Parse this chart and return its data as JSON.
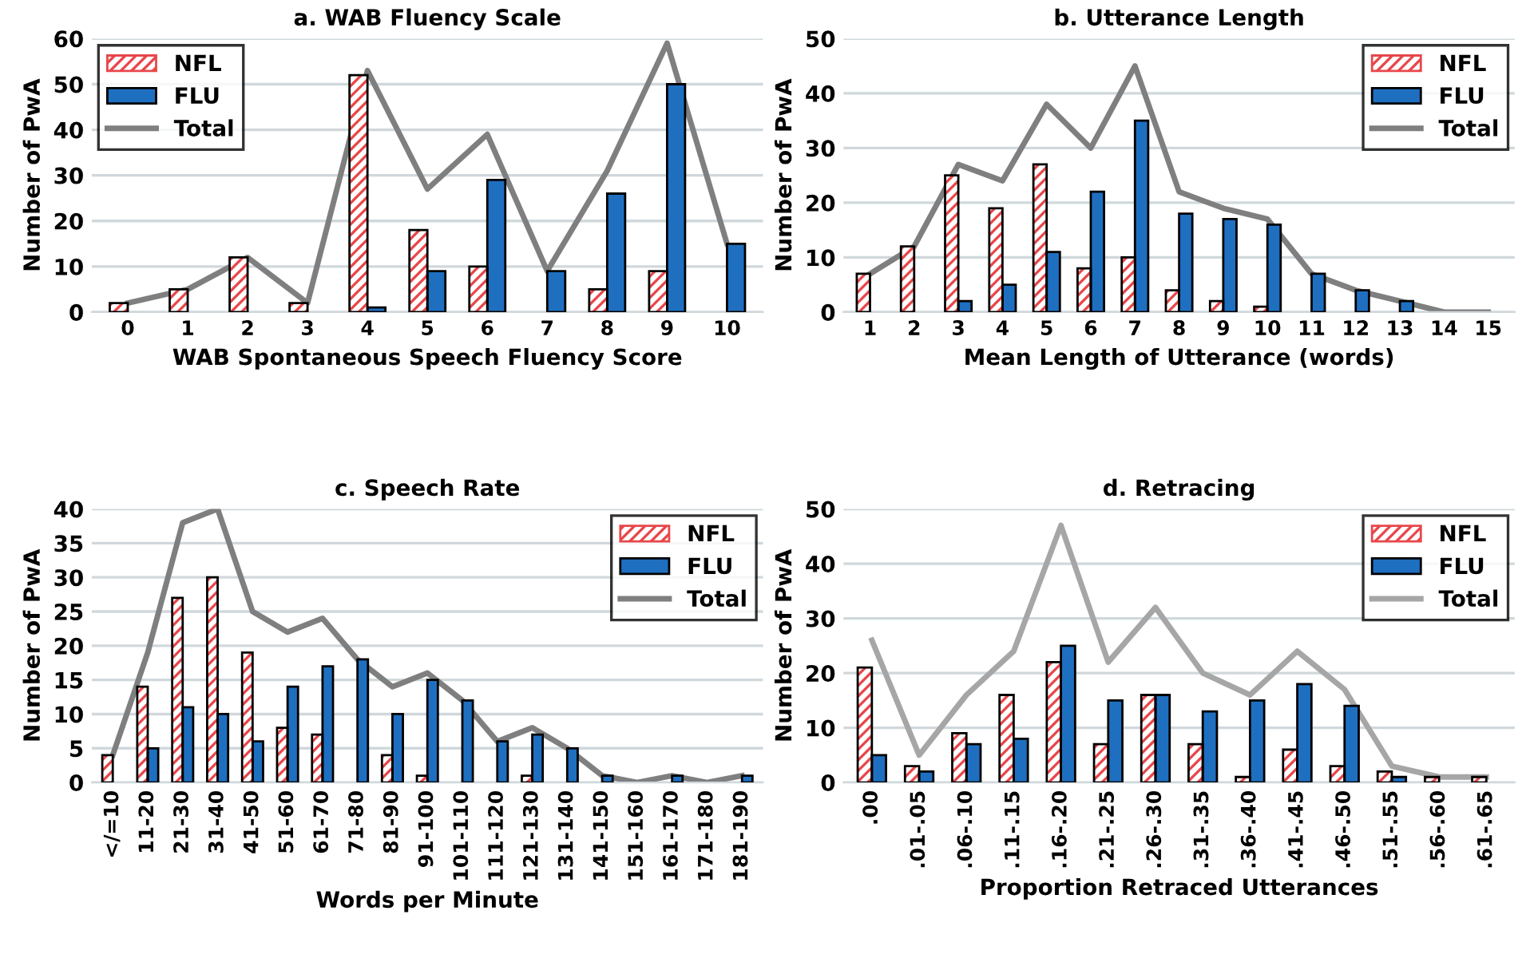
{
  "chart_data": [
    {
      "type": "bar",
      "title": "a. WAB Fluency Scale",
      "xlabel": "WAB Spontaneous Speech Fluency Score",
      "ylabel": "Number of PwA",
      "categories": [
        "0",
        "1",
        "2",
        "3",
        "4",
        "5",
        "6",
        "7",
        "8",
        "9",
        "10"
      ],
      "ylim": [
        0,
        60
      ],
      "yticks": [
        0,
        10,
        20,
        30,
        40,
        50,
        60
      ],
      "grid": "y",
      "legend": "top left",
      "series": [
        {
          "name": "NFL",
          "color": "#e8474b",
          "values": [
            2,
            5,
            12,
            2,
            52,
            18,
            10,
            null,
            5,
            9,
            null
          ]
        },
        {
          "name": "FLU",
          "color": "#1f6fc0",
          "values": [
            null,
            null,
            null,
            null,
            1,
            9,
            29,
            9,
            26,
            50,
            15
          ]
        },
        {
          "name": "Total",
          "type": "line",
          "color": "#7f7f7f",
          "values": [
            2,
            5,
            12,
            2,
            53,
            27,
            39,
            9,
            31,
            59,
            15
          ]
        }
      ]
    },
    {
      "type": "bar",
      "title": "b. Utterance Length",
      "xlabel": "Mean Length of Utterance (words)",
      "ylabel": "Number of PwA",
      "categories": [
        "1",
        "2",
        "3",
        "4",
        "5",
        "6",
        "7",
        "8",
        "9",
        "10",
        "11",
        "12",
        "13",
        "14",
        "15"
      ],
      "ylim": [
        0,
        50
      ],
      "yticks": [
        0,
        10,
        20,
        30,
        40,
        50
      ],
      "grid": "y",
      "legend": "top right",
      "series": [
        {
          "name": "NFL",
          "color": "#e8474b",
          "values": [
            7,
            12,
            25,
            19,
            27,
            8,
            10,
            4,
            2,
            1,
            null,
            null,
            null,
            null,
            null
          ]
        },
        {
          "name": "FLU",
          "color": "#1f6fc0",
          "values": [
            null,
            null,
            2,
            5,
            11,
            22,
            35,
            18,
            17,
            16,
            7,
            4,
            2,
            null,
            null
          ]
        },
        {
          "name": "Total",
          "type": "line",
          "color": "#7f7f7f",
          "values": [
            7,
            12,
            27,
            24,
            38,
            30,
            45,
            22,
            19,
            17,
            7,
            4,
            2,
            0,
            0
          ]
        }
      ]
    },
    {
      "type": "bar",
      "title": "c. Speech Rate",
      "xlabel": "Words per Minute",
      "ylabel": "Number of PwA",
      "categories": [
        "</=10",
        "11-20",
        "21-30",
        "31-40",
        "41-50",
        "51-60",
        "61-70",
        "71-80",
        "81-90",
        "91-100",
        "101-110",
        "111-120",
        "121-130",
        "131-140",
        "141-150",
        "151-160",
        "161-170",
        "171-180",
        "181-190"
      ],
      "ylim": [
        0,
        40
      ],
      "yticks": [
        0,
        5,
        10,
        15,
        20,
        25,
        30,
        35,
        40
      ],
      "grid": "y",
      "legend": "top right",
      "series": [
        {
          "name": "NFL",
          "color": "#e8474b",
          "values": [
            4,
            14,
            27,
            30,
            19,
            8,
            7,
            null,
            4,
            1,
            null,
            null,
            1,
            null,
            null,
            null,
            null,
            null,
            null
          ]
        },
        {
          "name": "FLU",
          "color": "#1f6fc0",
          "values": [
            null,
            5,
            11,
            10,
            6,
            14,
            17,
            18,
            10,
            15,
            12,
            6,
            7,
            5,
            1,
            null,
            1,
            null,
            1
          ]
        },
        {
          "name": "Total",
          "type": "line",
          "color": "#7f7f7f",
          "values": [
            4,
            19,
            38,
            40,
            25,
            22,
            24,
            18,
            14,
            16,
            12,
            6,
            8,
            5,
            1,
            0,
            1,
            0,
            1
          ]
        }
      ]
    },
    {
      "type": "bar",
      "title": "d. Retracing",
      "xlabel": "Proportion Retraced Utterances",
      "ylabel": "Number of PwA",
      "categories": [
        ".00",
        ".01-.05",
        ".06-.10",
        ".11-.15",
        ".16-.20",
        ".21-.25",
        ".26-.30",
        ".31-.35",
        ".36-.40",
        ".41-.45",
        ".46-.50",
        ".51-.55",
        ".56-.60",
        ".61-.65"
      ],
      "ylim": [
        0,
        50
      ],
      "yticks": [
        0,
        10,
        20,
        30,
        40,
        50
      ],
      "grid": "y",
      "legend": "top right",
      "series": [
        {
          "name": "NFL",
          "color": "#e8474b",
          "values": [
            21,
            3,
            9,
            16,
            22,
            7,
            16,
            7,
            1,
            6,
            3,
            2,
            1,
            1
          ]
        },
        {
          "name": "FLU",
          "color": "#1f6fc0",
          "values": [
            5,
            2,
            7,
            8,
            25,
            15,
            16,
            13,
            15,
            18,
            14,
            1,
            null,
            null
          ]
        },
        {
          "name": "Total",
          "type": "line",
          "color": "#a6a6a6",
          "values": [
            26,
            5,
            16,
            24,
            47,
            22,
            32,
            20,
            16,
            24,
            17,
            3,
            1,
            1
          ]
        }
      ]
    }
  ]
}
